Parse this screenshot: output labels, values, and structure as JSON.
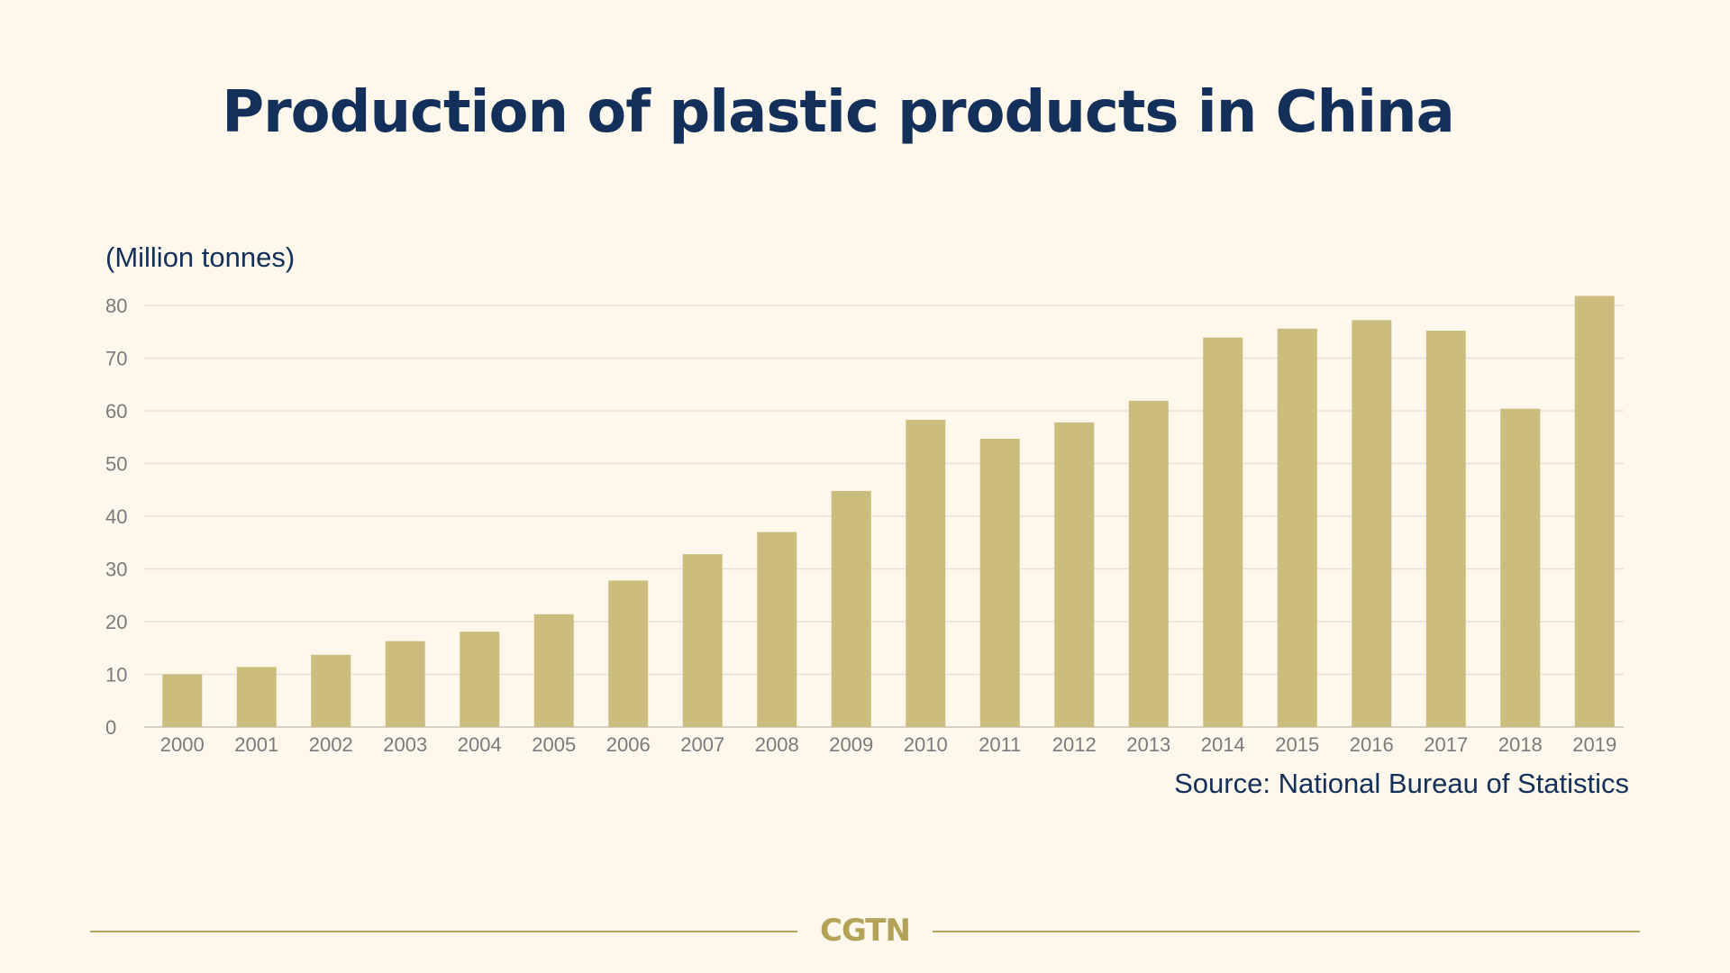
{
  "title": "Production of plastic products in China",
  "source": "Source: National Bureau of Statistics",
  "logo_text": "CGTN",
  "colors": {
    "background": "#fef7ec",
    "bar": "#cbbd7e",
    "title": "#13305a",
    "grid": "#e6e1d6",
    "tick": "#7b7b7b",
    "logo": "#b3a358"
  },
  "chart_data": {
    "type": "bar",
    "title": "Production of plastic products in China",
    "ylabel": "(Million tonnes)",
    "xlabel": "",
    "categories": [
      "2000",
      "2001",
      "2002",
      "2003",
      "2004",
      "2005",
      "2006",
      "2007",
      "2008",
      "2009",
      "2010",
      "2011",
      "2012",
      "2013",
      "2014",
      "2015",
      "2016",
      "2017",
      "2018",
      "2019"
    ],
    "values": [
      10.0,
      11.4,
      13.7,
      16.3,
      18.1,
      21.4,
      27.8,
      32.8,
      37.0,
      44.8,
      58.3,
      54.7,
      57.8,
      61.9,
      73.9,
      75.6,
      77.2,
      75.2,
      60.4,
      81.8
    ],
    "ylim": [
      0,
      80
    ],
    "yticks": [
      0,
      10,
      20,
      30,
      40,
      50,
      60,
      70,
      80
    ],
    "grid": true,
    "legend": "none"
  }
}
